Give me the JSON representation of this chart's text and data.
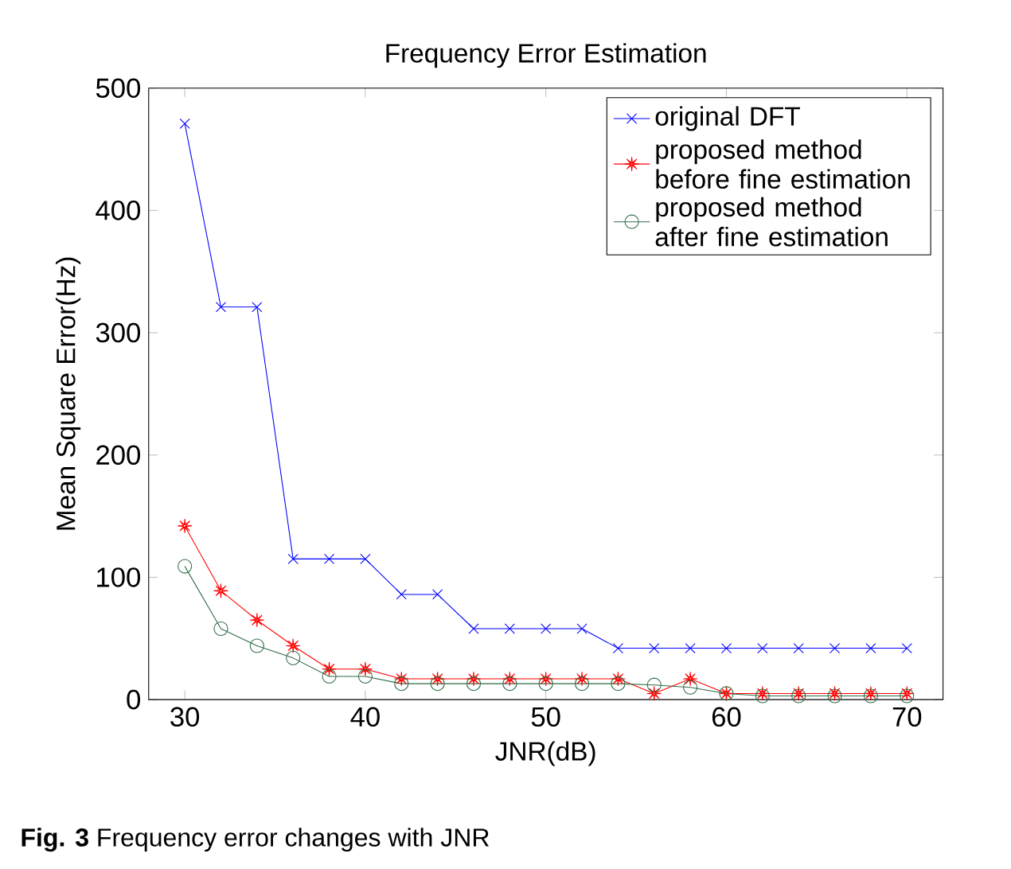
{
  "chart_data": {
    "type": "line",
    "title": "Frequency Error Estimation",
    "xlabel": "JNR(dB)",
    "ylabel": "Mean Square Error(Hz)",
    "x": [
      30,
      32,
      34,
      36,
      38,
      40,
      42,
      44,
      46,
      48,
      50,
      52,
      54,
      56,
      58,
      60,
      62,
      64,
      66,
      68,
      70
    ],
    "series": [
      {
        "name": "original DFT",
        "color": "#0000ff",
        "marker": "cross",
        "values": [
          471,
          321,
          321,
          115,
          115,
          115,
          86,
          86,
          58,
          58,
          58,
          58,
          42,
          42,
          42,
          42,
          42,
          42,
          42,
          42,
          42
        ]
      },
      {
        "name": "proposed method before fine estimation",
        "color": "#ff0000",
        "marker": "star",
        "values": [
          142,
          89,
          65,
          44,
          25,
          25,
          17,
          17,
          17,
          17,
          17,
          17,
          17,
          5,
          17,
          5,
          5,
          5,
          5,
          5,
          5
        ]
      },
      {
        "name": "proposed method after fine estimation",
        "color": "#2e6b45",
        "marker": "circle",
        "values": [
          109,
          58,
          44,
          34,
          19,
          19,
          13,
          13,
          13,
          13,
          13,
          13,
          13,
          12,
          10,
          5,
          3,
          3,
          3,
          3,
          3
        ]
      }
    ],
    "xlim": [
      28,
      72
    ],
    "ylim": [
      0,
      500
    ],
    "xticks": [
      30,
      40,
      50,
      60,
      70
    ],
    "yticks": [
      0,
      100,
      200,
      300,
      400,
      500
    ],
    "legend": "top right",
    "grid": false,
    "line_style": "solid",
    "annotations": [
      "**Fig. 3** Frequency error changes with JNR"
    ]
  }
}
